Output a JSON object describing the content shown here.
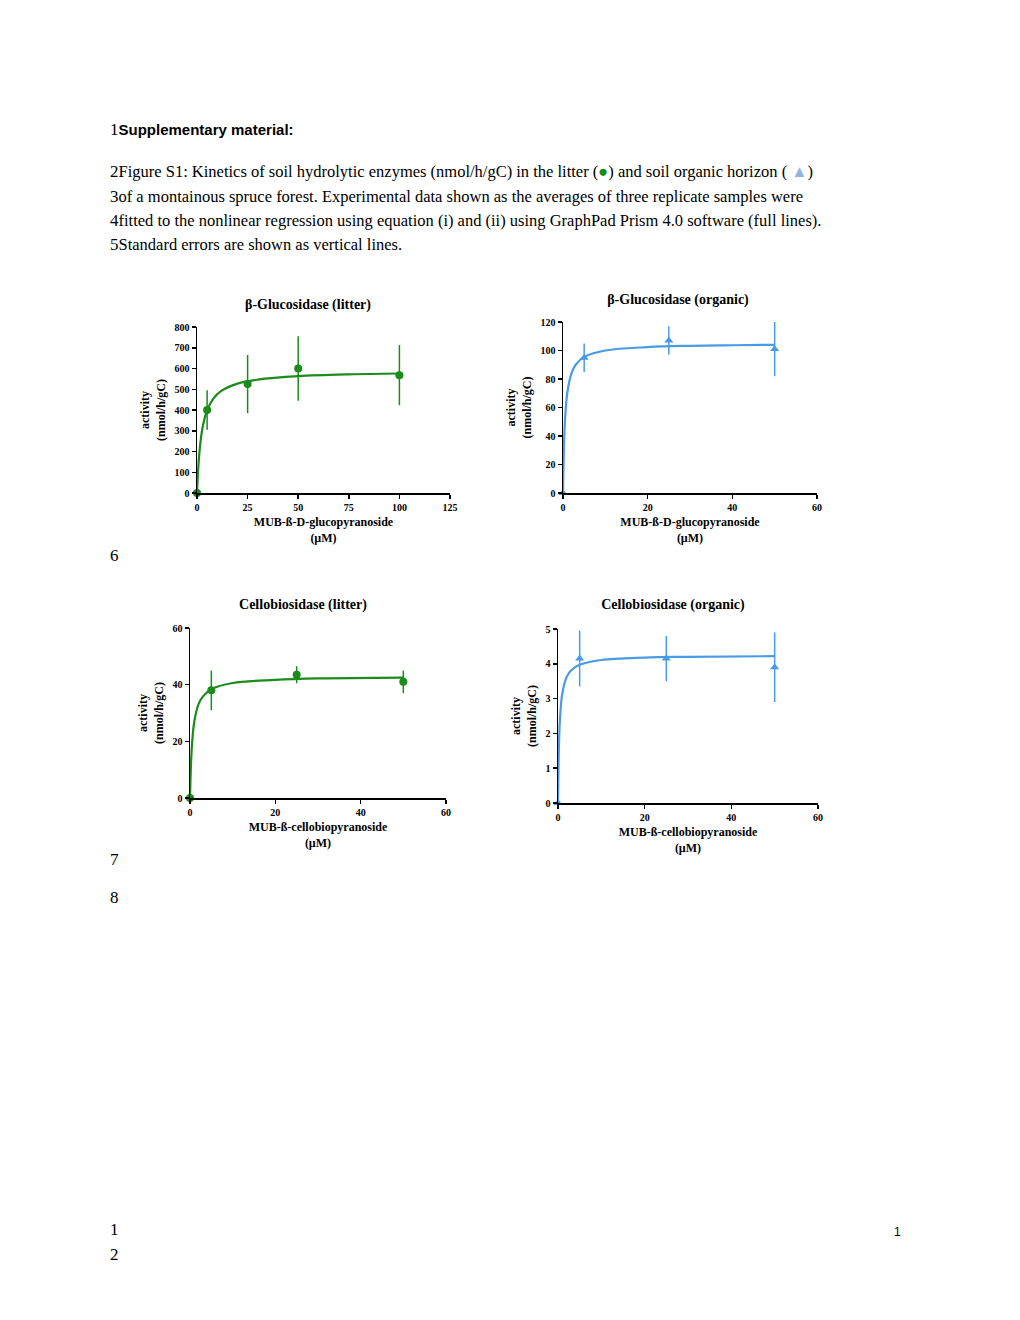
{
  "document": {
    "header": {
      "number": "1",
      "text": "Supplementary material:"
    },
    "caption": [
      {
        "number": "2",
        "parts": [
          {
            "text": "Figure S1: Kinetics of soil hydrolytic enzymes (nmol/h/gC) in the litter ("
          },
          {
            "text": "●",
            "color": "#1a8c1a"
          },
          {
            "text": ") and soil organic horizon ( "
          },
          {
            "text": "▲",
            "color": "#8fb4de"
          },
          {
            "text": ")"
          }
        ]
      },
      {
        "number": "3",
        "parts": [
          {
            "text": "of a montainous spruce forest. Experimental data shown as the averages of three replicate samples were"
          }
        ]
      },
      {
        "number": "4",
        "parts": [
          {
            "text": "fitted to the nonlinear regression using equation (i) and (ii) using GraphPad Prism 4.0 software (full lines)."
          }
        ]
      },
      {
        "number": "5",
        "parts": [
          {
            "text": "Standard errors are shown as vertical lines."
          }
        ]
      }
    ],
    "margin_numbers": [
      "6",
      "7",
      "8"
    ],
    "footer": {
      "line_numbers": [
        "1",
        "2"
      ],
      "page": "1"
    }
  },
  "chart_data": [
    {
      "type": "scatter",
      "title": "β-Glucosidase (litter)",
      "x_label": [
        "MUB-ß-D-glucopyranoside",
        "(µM)"
      ],
      "y_label": [
        "activity",
        "(nmol/h/gC)"
      ],
      "color": "#1a8c1a",
      "marker": "circle",
      "line_style": "solid",
      "grid": false,
      "points": {
        "x": [
          0,
          5,
          25,
          50,
          100
        ],
        "values": [
          0,
          400,
          525,
          600,
          568
        ],
        "errors": [
          0,
          95,
          140,
          155,
          145
        ]
      },
      "fit": {
        "x": [
          0,
          0.5,
          1,
          2,
          3,
          5,
          8,
          12,
          20,
          30,
          50,
          75,
          100
        ],
        "values": [
          0,
          102,
          173,
          268,
          328,
          399,
          454,
          492,
          527,
          546,
          563,
          572,
          576
        ]
      },
      "xlim": [
        0,
        125
      ],
      "xticks": [
        0,
        25,
        50,
        75,
        100,
        125
      ],
      "ylim": [
        0,
        800
      ],
      "yticks": [
        0,
        100,
        200,
        300,
        400,
        500,
        600,
        700,
        800
      ]
    },
    {
      "type": "scatter",
      "title": "β-Glucosidase (organic)",
      "x_label": [
        "MUB-ß-D-glucopyranoside",
        "(µM)"
      ],
      "y_label": [
        "activity",
        "(nmol/h/gC)"
      ],
      "color": "#4a9be6",
      "marker": "triangle-up",
      "line_style": "solid",
      "grid": false,
      "points": {
        "x": [
          0,
          5,
          25,
          50
        ],
        "values": [
          0,
          95,
          107,
          101
        ],
        "errors": [
          0,
          10,
          10,
          19
        ]
      },
      "fit": {
        "x": [
          0,
          0.25,
          0.5,
          1,
          2,
          3,
          5,
          10,
          20,
          30,
          40,
          50
        ],
        "values": [
          0,
          35,
          52.5,
          70,
          84,
          90,
          95.5,
          100,
          102.4,
          103.3,
          103.7,
          104
        ]
      },
      "xlim": [
        0,
        60
      ],
      "xticks": [
        0,
        20,
        40,
        60
      ],
      "ylim": [
        0,
        120
      ],
      "yticks": [
        0,
        20,
        40,
        60,
        80,
        100,
        120
      ]
    },
    {
      "type": "scatter",
      "title": "Cellobiosidase (litter)",
      "x_label": [
        "MUB-ß-cellobiopyranoside",
        "(µM)"
      ],
      "y_label": [
        "activity",
        "(nmol/h/gC)"
      ],
      "color": "#1a8c1a",
      "marker": "circle",
      "line_style": "solid",
      "grid": false,
      "points": {
        "x": [
          0,
          5,
          25,
          50
        ],
        "values": [
          0,
          38,
          43.5,
          41
        ],
        "errors": [
          0,
          7,
          3,
          4
        ]
      },
      "fit": {
        "x": [
          0,
          0.25,
          0.5,
          1,
          2,
          3,
          5,
          10,
          20,
          30,
          50
        ],
        "values": [
          0,
          12.6,
          19.5,
          26.9,
          33.1,
          35.8,
          38.4,
          40.6,
          41.7,
          42.2,
          42.5
        ]
      },
      "xlim": [
        0,
        60
      ],
      "xticks": [
        0,
        20,
        40,
        60
      ],
      "ylim": [
        0,
        60
      ],
      "yticks": [
        0,
        20,
        40,
        60
      ]
    },
    {
      "type": "scatter",
      "title": "Cellobiosidase (organic)",
      "x_label": [
        "MUB-ß-cellobiopyranoside",
        "(µM)"
      ],
      "y_label": [
        "activity",
        "(nmol/h/gC)"
      ],
      "color": "#4a9be6",
      "marker": "triangle-up",
      "line_style": "solid",
      "grid": false,
      "points": {
        "x": [
          0,
          5,
          25,
          50
        ],
        "values": [
          0,
          4.15,
          4.15,
          3.9
        ],
        "errors": [
          0,
          0.8,
          0.65,
          1.0
        ]
      },
      "fit": {
        "x": [
          0,
          0.25,
          0.5,
          1,
          2,
          3,
          5,
          10,
          20,
          30,
          50
        ],
        "values": [
          0,
          1.77,
          2.5,
          3.15,
          3.62,
          3.81,
          3.97,
          4.11,
          4.18,
          4.2,
          4.22
        ]
      },
      "xlim": [
        0,
        60
      ],
      "xticks": [
        0,
        20,
        40,
        60
      ],
      "ylim": [
        0,
        5
      ],
      "yticks": [
        0,
        1,
        2,
        3,
        4,
        5
      ]
    }
  ]
}
